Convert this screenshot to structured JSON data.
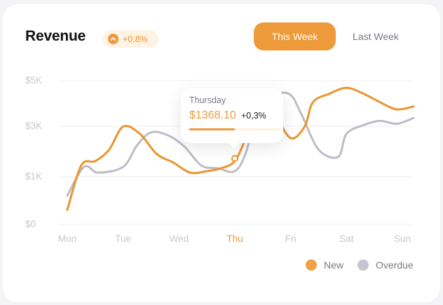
{
  "header": {
    "title": "Revenue",
    "change_badge": "+0,8%"
  },
  "toggle": {
    "this_week": "This Week",
    "last_week": "Last Week",
    "selected": "This Week"
  },
  "tooltip": {
    "day": "Thursday",
    "amount": "$1368.10",
    "change": "+0,3%",
    "progress": 0.5
  },
  "colors": {
    "accent": "#ec9a3a",
    "series_new": "#e8962f",
    "series_overdue": "#bdbcc8"
  },
  "chart_data": {
    "type": "line",
    "x": [
      "Mon",
      "Tue",
      "Wed",
      "Thu",
      "Fri",
      "Sat",
      "Sun"
    ],
    "y_ticks": [
      "$5K",
      "$3K",
      "$1K",
      "$0"
    ],
    "ylim": [
      0,
      5000
    ],
    "active_category": "Thu",
    "series": [
      {
        "name": "New",
        "color": "#e8962f",
        "points": [
          [
            0,
            500
          ],
          [
            0.25,
            2050
          ],
          [
            0.5,
            2200
          ],
          [
            0.75,
            2600
          ],
          [
            1,
            3400
          ],
          [
            1.3,
            3150
          ],
          [
            1.6,
            2450
          ],
          [
            1.9,
            2150
          ],
          [
            2.2,
            1800
          ],
          [
            2.5,
            1850
          ],
          [
            2.75,
            1950
          ],
          [
            3,
            2200
          ],
          [
            3.2,
            3000
          ],
          [
            3.4,
            3800
          ],
          [
            3.7,
            3800
          ],
          [
            4,
            3000
          ],
          [
            4.25,
            3400
          ],
          [
            4.4,
            4250
          ],
          [
            4.7,
            4550
          ],
          [
            5,
            4750
          ],
          [
            5.3,
            4550
          ],
          [
            5.6,
            4250
          ],
          [
            5.9,
            4000
          ],
          [
            6.2,
            4100
          ]
        ]
      },
      {
        "name": "Overdue",
        "color": "#bdbcc8",
        "points": [
          [
            0,
            1000
          ],
          [
            0.3,
            2000
          ],
          [
            0.55,
            1800
          ],
          [
            1,
            2000
          ],
          [
            1.25,
            2750
          ],
          [
            1.5,
            3200
          ],
          [
            1.8,
            3100
          ],
          [
            2.1,
            2700
          ],
          [
            2.4,
            2050
          ],
          [
            2.7,
            1950
          ],
          [
            3,
            1850
          ],
          [
            3.2,
            2500
          ],
          [
            3.4,
            3900
          ],
          [
            3.75,
            4500
          ],
          [
            4,
            4500
          ],
          [
            4.2,
            3800
          ],
          [
            4.5,
            2600
          ],
          [
            4.85,
            2350
          ],
          [
            5,
            3150
          ],
          [
            5.3,
            3450
          ],
          [
            5.6,
            3600
          ],
          [
            5.9,
            3500
          ],
          [
            6.2,
            3700
          ]
        ]
      }
    ]
  },
  "legend": [
    {
      "label": "New",
      "color": "#f0a046"
    },
    {
      "label": "Overdue",
      "color": "#c6c5cf"
    }
  ]
}
